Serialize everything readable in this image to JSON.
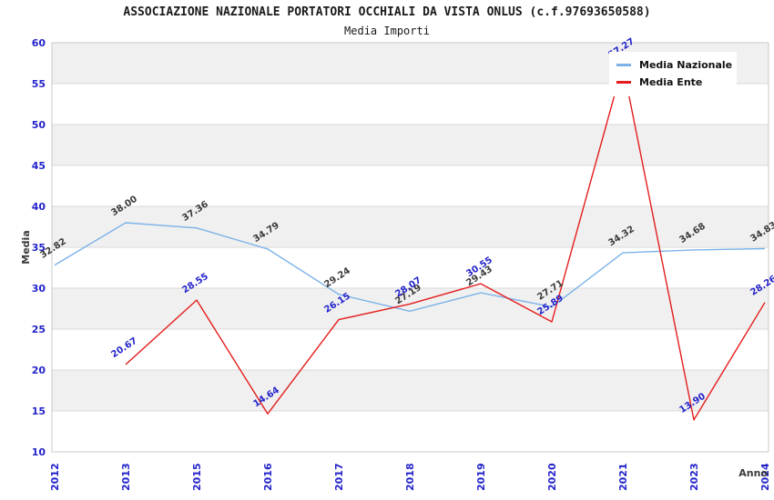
{
  "header": {
    "title": "ASSOCIAZIONE NAZIONALE PORTATORI OCCHIALI DA VISTA ONLUS (c.f.97693650588)",
    "subtitle": "Media Importi"
  },
  "axes": {
    "y_title": "Media",
    "x_title": "Anno",
    "y_ticks": [
      10,
      15,
      20,
      25,
      30,
      35,
      40,
      45,
      50,
      55,
      60
    ],
    "tick_color": "#2323cb",
    "axis_title_color": "#3a3a3a"
  },
  "chart_data": {
    "type": "line",
    "title": "ASSOCIAZIONE NAZIONALE PORTATORI OCCHIALI DA VISTA ONLUS (c.f.97693650588)",
    "subtitle": "Media Importi",
    "xlabel": "Anno",
    "ylabel": "Media",
    "ylim": [
      10,
      60
    ],
    "y_step": 5,
    "grid": true,
    "legend_position": "top-right",
    "band_colors": [
      "#f0f0f0",
      "#ffffff"
    ],
    "grid_color": "#d9d9d9",
    "border_color": "#c9c9c9",
    "categories": [
      "2012",
      "2013",
      "2015",
      "2016",
      "2017",
      "2018",
      "2019",
      "2020",
      "2021",
      "2023",
      "2024"
    ],
    "series": [
      {
        "name": "Media Nazionale",
        "color": "#7cb2e8",
        "label_color": "#3a3a3a",
        "values": [
          32.82,
          38.0,
          37.36,
          34.79,
          29.24,
          27.19,
          29.43,
          27.71,
          34.32,
          34.68,
          34.83
        ]
      },
      {
        "name": "Media Ente",
        "color": "#e51c1c",
        "label_color": "#2323cb",
        "values": [
          null,
          20.67,
          28.55,
          14.64,
          26.15,
          28.07,
          30.55,
          25.89,
          57.27,
          13.9,
          28.26
        ]
      }
    ]
  }
}
